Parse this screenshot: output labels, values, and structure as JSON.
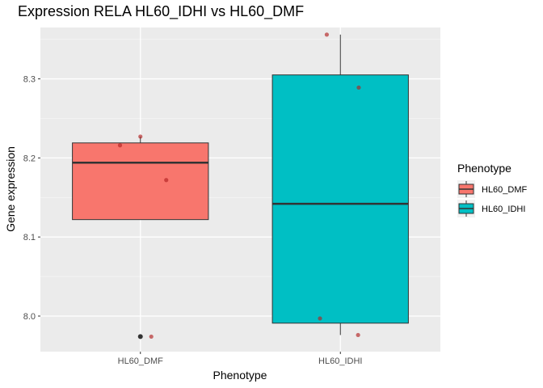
{
  "chart_data": {
    "type": "box",
    "title": "Expression RELA HL60_IDHI vs HL60_DMF",
    "xlabel": "Phenotype",
    "ylabel": "Gene expression",
    "categories": [
      "HL60_DMF",
      "HL60_IDHI"
    ],
    "ylim": [
      7.955,
      8.365
    ],
    "yticks": [
      8.0,
      8.1,
      8.2,
      8.3
    ],
    "ytick_labels": [
      "8.0",
      "8.1",
      "8.2",
      "8.3"
    ],
    "grid": true,
    "legend": {
      "title": "Phenotype",
      "position": "right",
      "entries": [
        {
          "label": "HL60_DMF",
          "color": "#f8766d"
        },
        {
          "label": "HL60_IDHI",
          "color": "#00bfc4"
        }
      ]
    },
    "boxes": [
      {
        "category": "HL60_DMF",
        "color": "#f8766d",
        "whisker_low": 8.122,
        "q1": 8.122,
        "median": 8.194,
        "q3": 8.219,
        "whisker_high": 8.227,
        "outliers": [
          7.974
        ]
      },
      {
        "category": "HL60_IDHI",
        "color": "#00bfc4",
        "whisker_low": 7.976,
        "q1": 7.991,
        "median": 8.142,
        "q3": 8.305,
        "whisker_high": 8.356,
        "outliers": []
      }
    ],
    "points": [
      {
        "category": "HL60_DMF",
        "y": 8.227,
        "jitter": 0.0
      },
      {
        "category": "HL60_DMF",
        "y": 8.216,
        "jitter": -0.3
      },
      {
        "category": "HL60_DMF",
        "y": 8.172,
        "jitter": 0.38
      },
      {
        "category": "HL60_DMF",
        "y": 7.974,
        "jitter": 0.16
      },
      {
        "category": "HL60_IDHI",
        "y": 8.356,
        "jitter": -0.2
      },
      {
        "category": "HL60_IDHI",
        "y": 8.289,
        "jitter": 0.27
      },
      {
        "category": "HL60_IDHI",
        "y": 7.997,
        "jitter": -0.3
      },
      {
        "category": "HL60_IDHI",
        "y": 7.976,
        "jitter": 0.26
      }
    ]
  }
}
